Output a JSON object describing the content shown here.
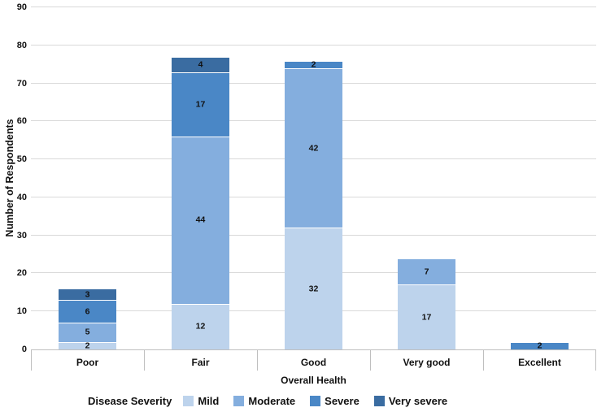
{
  "chart_data": {
    "type": "bar",
    "stacked": true,
    "xlabel": "Overall Health",
    "ylabel": "Number of Respondents",
    "legend_title": "Disease Severity",
    "legend_position": "bottom",
    "grid": true,
    "ylim": [
      0,
      90
    ],
    "ytick_step": 10,
    "ytick_labels": [
      "0",
      "10",
      "20",
      "30",
      "40",
      "50",
      "60",
      "70",
      "80",
      "90"
    ],
    "categories": [
      "Poor",
      "Fair",
      "Good",
      "Very good",
      "Excellent"
    ],
    "series": [
      {
        "name": "Mild",
        "color": "#BDD3EC",
        "values": [
          2,
          12,
          32,
          17,
          0
        ]
      },
      {
        "name": "Moderate",
        "color": "#84AEDE",
        "values": [
          5,
          44,
          42,
          7,
          0
        ]
      },
      {
        "name": "Severe",
        "color": "#4A87C6",
        "values": [
          6,
          17,
          2,
          0,
          2
        ]
      },
      {
        "name": "Very severe",
        "color": "#3A6CA1",
        "values": [
          3,
          4,
          0,
          0,
          0
        ]
      }
    ],
    "totals": [
      16,
      77,
      76,
      24,
      2
    ],
    "show_data_labels": true
  },
  "colors": {
    "gridline": "#D9D9D9",
    "axis_line": "#BFBFBF",
    "text": "#111111",
    "background": "#FFFFFF"
  }
}
